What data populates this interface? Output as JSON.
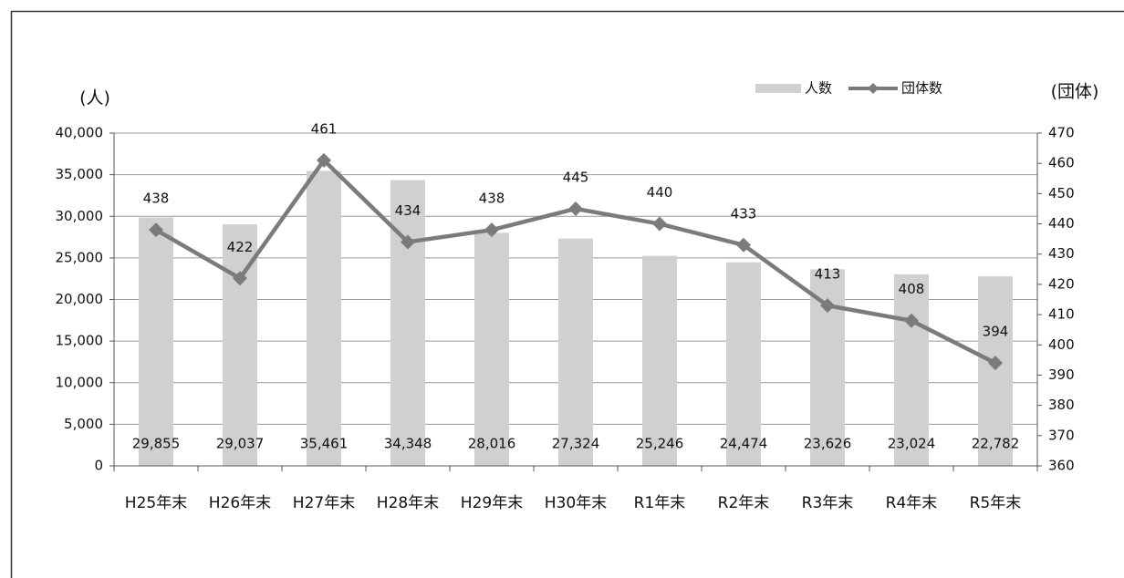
{
  "chart_data": {
    "type": "bar",
    "y_label": "(人)",
    "y2_label": "(団体)",
    "categories": [
      "H25年末",
      "H26年末",
      "H27年末",
      "H28年末",
      "H29年末",
      "H30年末",
      "R1年末",
      "R2年末",
      "R3年末",
      "R4年末",
      "R5年末"
    ],
    "series": [
      {
        "name": "人数",
        "type": "bar",
        "color": "#d0d0d0",
        "values": [
          29855,
          29037,
          35461,
          34348,
          28016,
          27324,
          25246,
          24474,
          23626,
          23024,
          22782
        ],
        "value_labels": [
          "29,855",
          "29,037",
          "35,461",
          "34,348",
          "28,016",
          "27,324",
          "25,246",
          "24,474",
          "23,626",
          "23,024",
          "22,782"
        ]
      },
      {
        "name": "団体数",
        "type": "line",
        "axis": "y2",
        "color": "#7b7b7b",
        "values": [
          438,
          422,
          461,
          434,
          438,
          445,
          440,
          433,
          413,
          408,
          394
        ]
      }
    ],
    "ylim": [
      0,
      40000
    ],
    "yticks": [
      0,
      {
        "value": 5000,
        "label": "5,000"
      },
      {
        "value": 10000,
        "label": "10,000"
      },
      {
        "value": 15000,
        "label": "15,000"
      },
      {
        "value": 20000,
        "label": "20,000"
      },
      {
        "value": 25000,
        "label": "25,000"
      },
      {
        "value": 30000,
        "label": "30,000"
      },
      {
        "value": 35000,
        "label": "35,000"
      },
      {
        "value": 40000,
        "label": "40,000"
      }
    ],
    "y2lim": [
      360,
      470
    ],
    "y2ticks": [
      360,
      370,
      380,
      390,
      400,
      410,
      420,
      430,
      440,
      450,
      460,
      470
    ],
    "grid": true,
    "legend": "top-right"
  }
}
